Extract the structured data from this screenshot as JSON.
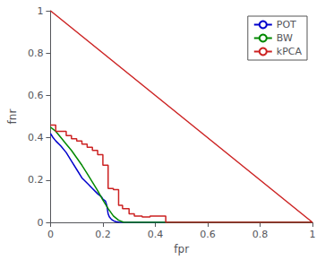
{
  "chart_data": {
    "type": "line",
    "xlabel": "fpr",
    "ylabel": "fnr",
    "xlim": [
      0,
      1
    ],
    "ylim": [
      0,
      1
    ],
    "xticks": [
      0,
      0.2,
      0.4,
      0.6,
      0.8,
      1
    ],
    "yticks": [
      0,
      0.2,
      0.4,
      0.6,
      0.8,
      1
    ],
    "grid": false,
    "legend": "upper right",
    "series": [
      {
        "name": "POT",
        "color": "#0000cc",
        "x": [
          0.0,
          0.005,
          0.01,
          0.02,
          0.04,
          0.06,
          0.08,
          0.1,
          0.12,
          0.14,
          0.16,
          0.18,
          0.195,
          0.2,
          0.21,
          0.215,
          0.22,
          0.225,
          0.23,
          0.235,
          0.24,
          0.245,
          0.25,
          0.26,
          0.28,
          1.0
        ],
        "values": [
          0.42,
          0.41,
          0.4,
          0.385,
          0.36,
          0.33,
          0.29,
          0.25,
          0.21,
          0.185,
          0.16,
          0.135,
          0.12,
          0.11,
          0.1,
          0.08,
          0.04,
          0.025,
          0.018,
          0.012,
          0.008,
          0.005,
          0.003,
          0.001,
          0.0,
          0.0
        ]
      },
      {
        "name": "BW",
        "color": "#008800",
        "x": [
          0.0,
          0.005,
          0.01,
          0.02,
          0.04,
          0.06,
          0.08,
          0.1,
          0.12,
          0.14,
          0.16,
          0.18,
          0.2,
          0.22,
          0.24,
          0.26,
          0.28,
          1.0
        ],
        "values": [
          0.45,
          0.445,
          0.44,
          0.43,
          0.4,
          0.37,
          0.34,
          0.305,
          0.27,
          0.23,
          0.19,
          0.15,
          0.105,
          0.065,
          0.03,
          0.01,
          0.0,
          0.0
        ]
      },
      {
        "name": "kPCA",
        "color": "#cc2222",
        "x": [
          0.0,
          1.0
        ],
        "values": [
          1.0,
          0.0
        ]
      },
      {
        "name": "kPCA",
        "color": "#cc2222",
        "x": [
          0.0,
          0.02,
          0.02,
          0.06,
          0.06,
          0.08,
          0.08,
          0.1,
          0.1,
          0.12,
          0.12,
          0.14,
          0.14,
          0.16,
          0.16,
          0.18,
          0.18,
          0.2,
          0.2,
          0.22,
          0.22,
          0.24,
          0.24,
          0.26,
          0.26,
          0.275,
          0.275,
          0.3,
          0.3,
          0.32,
          0.32,
          0.35,
          0.35,
          0.38,
          0.38,
          0.44,
          0.44,
          0.5,
          1.0
        ],
        "values": [
          0.46,
          0.46,
          0.43,
          0.43,
          0.41,
          0.41,
          0.395,
          0.395,
          0.385,
          0.385,
          0.37,
          0.37,
          0.355,
          0.355,
          0.34,
          0.34,
          0.32,
          0.32,
          0.27,
          0.27,
          0.16,
          0.16,
          0.155,
          0.155,
          0.08,
          0.08,
          0.065,
          0.065,
          0.04,
          0.04,
          0.03,
          0.03,
          0.025,
          0.025,
          0.03,
          0.03,
          0.0,
          0.0,
          0.0
        ]
      }
    ]
  }
}
